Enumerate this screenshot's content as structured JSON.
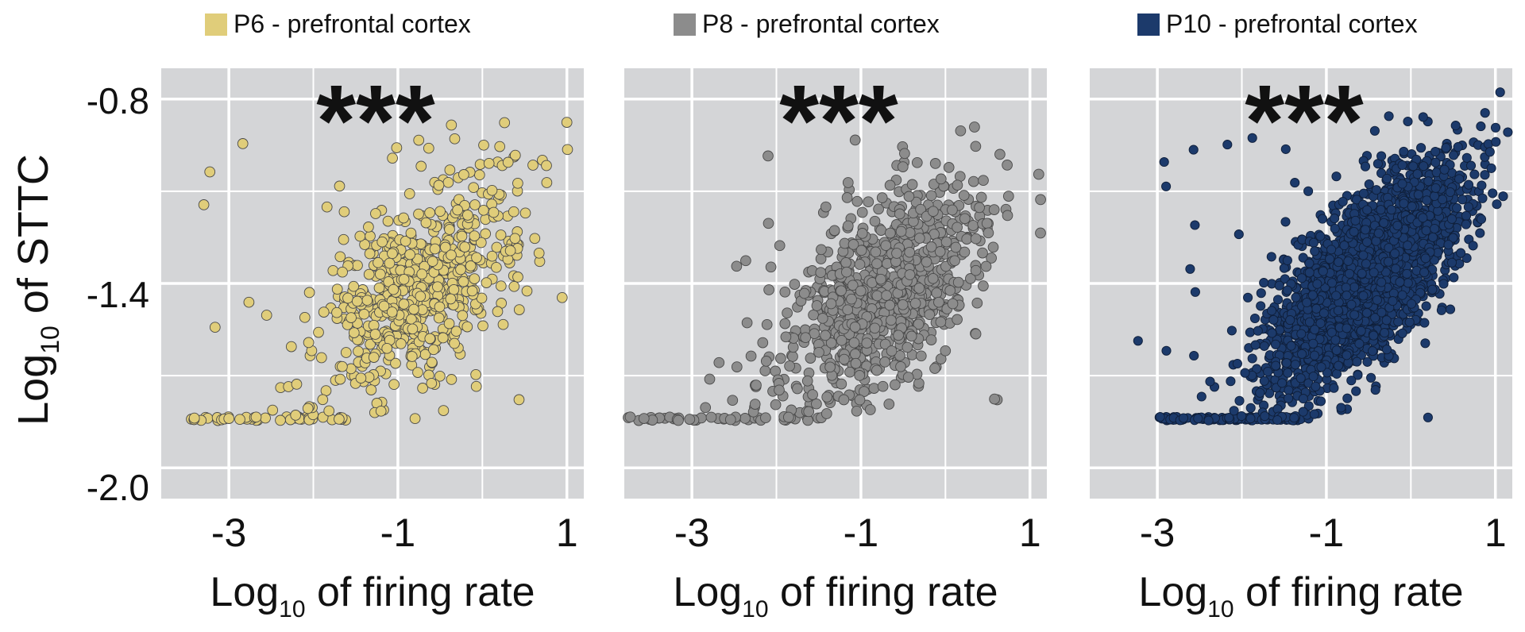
{
  "figure": {
    "ylabel_main": "Log",
    "ylabel_sub": "10",
    "ylabel_rest": " of STTC",
    "xlabel_main": "Log",
    "xlabel_sub": "10",
    "xlabel_rest": " of firing rate",
    "y_ticks": [
      "-0.8",
      "-1.4",
      "-2.0"
    ],
    "x_ticks": [
      "-3",
      "-1",
      "1"
    ],
    "panel_background": "#d4d5d7",
    "grid_color": "#ffffff"
  },
  "chart_data": [
    {
      "type": "scatter",
      "legend": "P6 - prefrontal cortex",
      "color": "#e0cd7a",
      "significance": "***",
      "grid": true,
      "x_range": [
        -3.8,
        1.2
      ],
      "y_range": [
        -2.1,
        -0.7
      ],
      "y_ticks": [
        -0.8,
        -1.4,
        -2.0
      ],
      "x_ticks": [
        -3,
        -1,
        1
      ],
      "baseline": {
        "y": -1.84,
        "x_range": [
          -3.5,
          -1.6
        ]
      },
      "cloud": {
        "x_center": -0.75,
        "y_center": -1.42,
        "count": 620
      }
    },
    {
      "type": "scatter",
      "legend": "P8 - prefrontal cortex",
      "color": "#8c8c8c",
      "significance": "***",
      "grid": true,
      "x_range": [
        -3.8,
        1.2
      ],
      "y_range": [
        -2.1,
        -0.7
      ],
      "y_ticks": [
        -0.8,
        -1.4,
        -2.0
      ],
      "x_ticks": [
        -3,
        -1,
        1
      ],
      "baseline": {
        "y": -1.84,
        "x_range": [
          -3.8,
          -1.5
        ]
      },
      "cloud": {
        "x_center": -0.75,
        "y_center": -1.42,
        "count": 900
      }
    },
    {
      "type": "scatter",
      "legend": "P10 - prefrontal cortex",
      "color": "#1c3a6b",
      "significance": "***",
      "grid": true,
      "x_range": [
        -3.8,
        1.2
      ],
      "y_range": [
        -2.1,
        -0.7
      ],
      "y_ticks": [
        -0.8,
        -1.4,
        -2.0
      ],
      "x_ticks": [
        -3,
        -1,
        1
      ],
      "baseline": {
        "y": -1.84,
        "x_range": [
          -3.0,
          -1.2
        ]
      },
      "cloud": {
        "x_center": -0.55,
        "y_center": -1.38,
        "count": 2600
      }
    }
  ]
}
